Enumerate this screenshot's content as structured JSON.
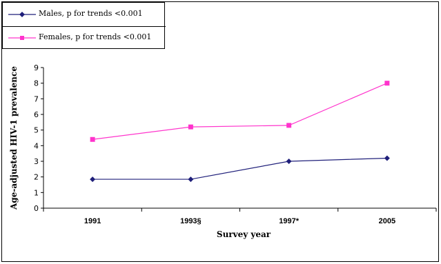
{
  "chart_data": {
    "type": "line",
    "categories": [
      "1991",
      "1993§",
      "1997*",
      "2005"
    ],
    "series": [
      {
        "name": "Males, p for trends <0.001",
        "values": [
          1.85,
          1.85,
          3.0,
          3.2
        ],
        "color": "#1f1f7a",
        "marker": "diamond"
      },
      {
        "name": "Females, p for trends <0.001",
        "values": [
          4.4,
          5.2,
          5.3,
          8.0
        ],
        "color": "#ff33cc",
        "marker": "square"
      }
    ],
    "xlabel": "Survey year",
    "ylabel": "Age-adjusted HIV-1 prevalence",
    "ylim": [
      0,
      9
    ],
    "yticks": [
      "0",
      "1",
      "2",
      "3",
      "4",
      "5",
      "6",
      "7",
      "8",
      "9"
    ],
    "grid": false,
    "legend_position": "top-left"
  }
}
